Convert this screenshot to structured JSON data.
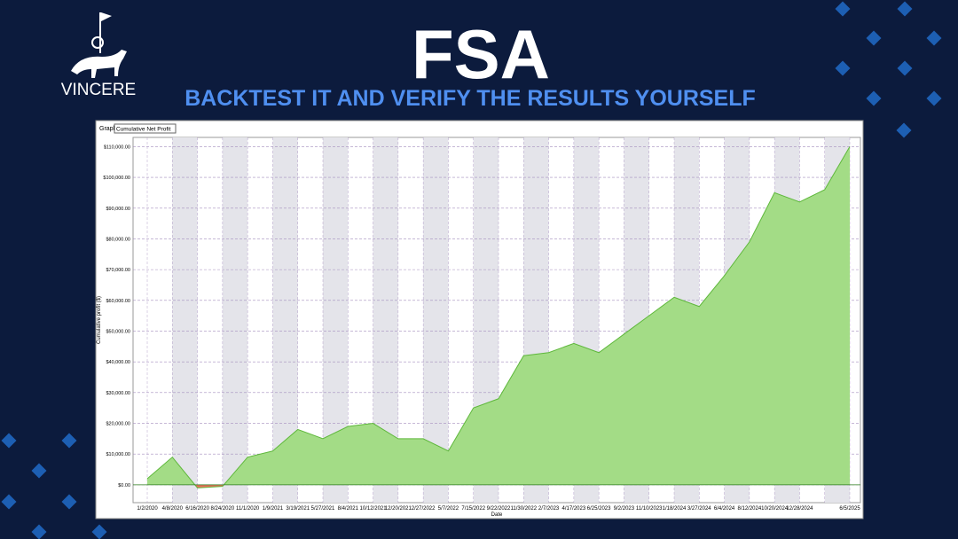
{
  "header": {
    "logo": "VINCERE",
    "title": "FSA",
    "subtitle": "BACKTEST IT AND VERIFY THE RESULTS YOURSELF"
  },
  "control": {
    "label": "Graph",
    "selected": "Cumulative Net Profit"
  },
  "chart_data": {
    "type": "area",
    "x_label": "Date",
    "y_label": "Cumulative profit ($)",
    "categories": [
      "1/2/2020",
      "4/8/2020",
      "6/16/2020",
      "8/24/2020",
      "11/1/2020",
      "1/9/2021",
      "3/19/2021",
      "5/27/2021",
      "8/4/2021",
      "10/12/2021",
      "12/20/2021",
      "2/27/2022",
      "5/7/2022",
      "7/15/2022",
      "9/22/2022",
      "11/30/2022",
      "2/7/2023",
      "4/17/2023",
      "6/25/2023",
      "9/2/2023",
      "11/10/2023",
      "1/18/2024",
      "3/27/2024",
      "6/4/2024",
      "8/12/2024",
      "10/20/2024",
      "12/28/2024",
      null,
      "6/5/2025"
    ],
    "series": [
      {
        "name": "Cumulative Net Profit",
        "color": "#a3dc86",
        "negative_color": "#e8705a",
        "values": [
          2000,
          9000,
          -1000,
          -500,
          9000,
          11000,
          18000,
          15000,
          19000,
          20000,
          15000,
          15000,
          11000,
          25000,
          28000,
          42000,
          43000,
          46000,
          43000,
          49000,
          55000,
          61000,
          58000,
          68000,
          79000,
          95000,
          92000,
          96000,
          110000
        ]
      }
    ],
    "ylim": [
      -5800,
      113000
    ],
    "yticks": [
      {
        "value": 0,
        "label": "$0.00"
      },
      {
        "value": 10000,
        "label": "$10,000.00"
      },
      {
        "value": 20000,
        "label": "$20,000.00"
      },
      {
        "value": 30000,
        "label": "$30,000.00"
      },
      {
        "value": 40000,
        "label": "$40,000.00"
      },
      {
        "value": 50000,
        "label": "$50,000.00"
      },
      {
        "value": 60000,
        "label": "$60,000.00"
      },
      {
        "value": 70000,
        "label": "$70,000.00"
      },
      {
        "value": 80000,
        "label": "$80,000.00"
      },
      {
        "value": 90000,
        "label": "$90,000.00"
      },
      {
        "value": 100000,
        "label": "$100,000.00"
      },
      {
        "value": 110000,
        "label": "$110,000.00"
      }
    ],
    "grid": true
  }
}
